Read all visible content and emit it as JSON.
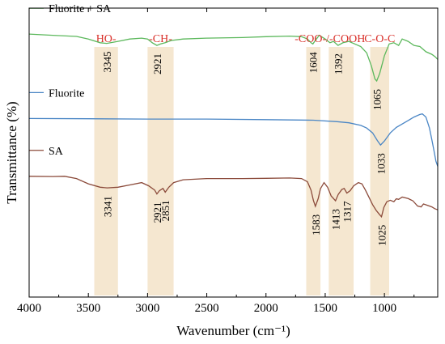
{
  "chart_data": {
    "type": "line",
    "title": "",
    "xlabel": "Wavenumber (cm⁻¹)",
    "ylabel": "Transmittance (%)",
    "xlim": [
      4000,
      550
    ],
    "x_reversed": true,
    "xticks": [
      4000,
      3500,
      3000,
      2500,
      2000,
      1500,
      1000
    ],
    "ylim": [
      0,
      1
    ],
    "yticks_shown": false,
    "grid": false,
    "legend": "inline labels at upper-left of each trace",
    "series": [
      {
        "name": "Fluorite + SA",
        "color": "#5cb85c",
        "points": [
          [
            4000,
            0.91
          ],
          [
            3800,
            0.906
          ],
          [
            3600,
            0.902
          ],
          [
            3500,
            0.893
          ],
          [
            3400,
            0.88
          ],
          [
            3345,
            0.878
          ],
          [
            3250,
            0.885
          ],
          [
            3150,
            0.893
          ],
          [
            3050,
            0.896
          ],
          [
            3000,
            0.893
          ],
          [
            2960,
            0.88
          ],
          [
            2921,
            0.871
          ],
          [
            2890,
            0.876
          ],
          [
            2851,
            0.88
          ],
          [
            2800,
            0.888
          ],
          [
            2700,
            0.893
          ],
          [
            2500,
            0.896
          ],
          [
            2200,
            0.898
          ],
          [
            2000,
            0.901
          ],
          [
            1800,
            0.903
          ],
          [
            1700,
            0.901
          ],
          [
            1650,
            0.893
          ],
          [
            1620,
            0.88
          ],
          [
            1604,
            0.876
          ],
          [
            1580,
            0.89
          ],
          [
            1550,
            0.906
          ],
          [
            1500,
            0.893
          ],
          [
            1460,
            0.88
          ],
          [
            1430,
            0.885
          ],
          [
            1392,
            0.871
          ],
          [
            1350,
            0.88
          ],
          [
            1300,
            0.885
          ],
          [
            1250,
            0.876
          ],
          [
            1200,
            0.867
          ],
          [
            1150,
            0.845
          ],
          [
            1110,
            0.8
          ],
          [
            1080,
            0.755
          ],
          [
            1065,
            0.748
          ],
          [
            1040,
            0.774
          ],
          [
            1000,
            0.835
          ],
          [
            960,
            0.876
          ],
          [
            920,
            0.88
          ],
          [
            880,
            0.871
          ],
          [
            850,
            0.893
          ],
          [
            800,
            0.885
          ],
          [
            750,
            0.871
          ],
          [
            700,
            0.867
          ],
          [
            650,
            0.849
          ],
          [
            600,
            0.84
          ],
          [
            570,
            0.831
          ],
          [
            550,
            0.822
          ]
        ]
      },
      {
        "name": "Fluorite",
        "color": "#4a86c5",
        "points": [
          [
            4000,
            0.618
          ],
          [
            3500,
            0.617
          ],
          [
            3000,
            0.616
          ],
          [
            2500,
            0.616
          ],
          [
            2000,
            0.614
          ],
          [
            1600,
            0.612
          ],
          [
            1400,
            0.607
          ],
          [
            1300,
            0.603
          ],
          [
            1200,
            0.594
          ],
          [
            1150,
            0.585
          ],
          [
            1100,
            0.568
          ],
          [
            1060,
            0.542
          ],
          [
            1033,
            0.526
          ],
          [
            1000,
            0.54
          ],
          [
            950,
            0.568
          ],
          [
            900,
            0.587
          ],
          [
            850,
            0.599
          ],
          [
            800,
            0.611
          ],
          [
            750,
            0.623
          ],
          [
            700,
            0.632
          ],
          [
            680,
            0.634
          ],
          [
            650,
            0.623
          ],
          [
            620,
            0.585
          ],
          [
            600,
            0.545
          ],
          [
            580,
            0.503
          ],
          [
            565,
            0.47
          ],
          [
            550,
            0.452
          ]
        ]
      },
      {
        "name": "SA",
        "color": "#8b4a3a",
        "points": [
          [
            4000,
            0.418
          ],
          [
            3800,
            0.417
          ],
          [
            3700,
            0.418
          ],
          [
            3600,
            0.41
          ],
          [
            3500,
            0.392
          ],
          [
            3400,
            0.38
          ],
          [
            3341,
            0.378
          ],
          [
            3250,
            0.38
          ],
          [
            3150,
            0.388
          ],
          [
            3050,
            0.396
          ],
          [
            2990,
            0.385
          ],
          [
            2940,
            0.37
          ],
          [
            2921,
            0.357
          ],
          [
            2900,
            0.368
          ],
          [
            2870,
            0.376
          ],
          [
            2851,
            0.363
          ],
          [
            2820,
            0.38
          ],
          [
            2780,
            0.396
          ],
          [
            2700,
            0.406
          ],
          [
            2500,
            0.41
          ],
          [
            2200,
            0.41
          ],
          [
            2000,
            0.411
          ],
          [
            1800,
            0.412
          ],
          [
            1700,
            0.41
          ],
          [
            1650,
            0.399
          ],
          [
            1620,
            0.37
          ],
          [
            1600,
            0.335
          ],
          [
            1583,
            0.314
          ],
          [
            1560,
            0.34
          ],
          [
            1540,
            0.375
          ],
          [
            1510,
            0.396
          ],
          [
            1480,
            0.38
          ],
          [
            1450,
            0.35
          ],
          [
            1413,
            0.333
          ],
          [
            1390,
            0.355
          ],
          [
            1360,
            0.372
          ],
          [
            1340,
            0.376
          ],
          [
            1317,
            0.36
          ],
          [
            1290,
            0.368
          ],
          [
            1260,
            0.385
          ],
          [
            1220,
            0.396
          ],
          [
            1190,
            0.392
          ],
          [
            1160,
            0.37
          ],
          [
            1130,
            0.345
          ],
          [
            1100,
            0.32
          ],
          [
            1070,
            0.3
          ],
          [
            1040,
            0.285
          ],
          [
            1025,
            0.278
          ],
          [
            1005,
            0.31
          ],
          [
            980,
            0.33
          ],
          [
            950,
            0.335
          ],
          [
            920,
            0.33
          ],
          [
            900,
            0.34
          ],
          [
            880,
            0.338
          ],
          [
            850,
            0.346
          ],
          [
            800,
            0.341
          ],
          [
            760,
            0.333
          ],
          [
            720,
            0.315
          ],
          [
            690,
            0.312
          ],
          [
            670,
            0.322
          ],
          [
            640,
            0.318
          ],
          [
            600,
            0.312
          ],
          [
            575,
            0.306
          ],
          [
            550,
            0.302
          ]
        ]
      }
    ],
    "bands": [
      {
        "label": "HO-",
        "color": "#f5e7d0",
        "from": 3450,
        "to": 3250
      },
      {
        "label": "-CH-",
        "color": "#f5e7d0",
        "from": 3000,
        "to": 2780
      },
      {
        "label": "",
        "color": "#f5e7d0",
        "from": 1660,
        "to": 1540
      },
      {
        "label": "",
        "color": "#f5e7d0",
        "from": 1470,
        "to": 1260
      },
      {
        "label": "C-O-C",
        "color": "#f5e7d0",
        "from": 1120,
        "to": 960
      }
    ],
    "group_label": "-COO-/-COOH",
    "group_label_color": "#d9302a",
    "annotations": [
      {
        "text": "3345",
        "x": 3345,
        "series": "Fluorite + SA"
      },
      {
        "text": "2921",
        "x": 2921,
        "series": "Fluorite + SA"
      },
      {
        "text": "1604",
        "x": 1604,
        "series": "Fluorite + SA"
      },
      {
        "text": "1392",
        "x": 1392,
        "series": "Fluorite + SA"
      },
      {
        "text": "1065",
        "x": 1065,
        "series": "Fluorite + SA"
      },
      {
        "text": "1033",
        "x": 1033,
        "series": "Fluorite"
      },
      {
        "text": "3341",
        "x": 3341,
        "series": "SA"
      },
      {
        "text": "2921",
        "x": 2921,
        "series": "SA"
      },
      {
        "text": "2851",
        "x": 2851,
        "series": "SA"
      },
      {
        "text": "1583",
        "x": 1583,
        "series": "SA"
      },
      {
        "text": "1413",
        "x": 1413,
        "series": "SA"
      },
      {
        "text": "1317",
        "x": 1317,
        "series": "SA"
      },
      {
        "text": "1025",
        "x": 1025,
        "series": "SA"
      }
    ]
  }
}
